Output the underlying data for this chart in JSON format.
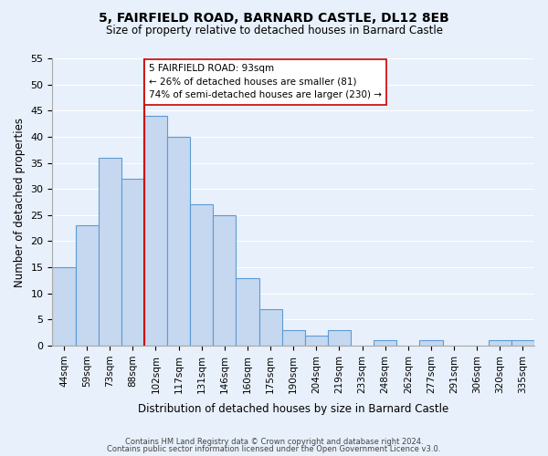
{
  "title": "5, FAIRFIELD ROAD, BARNARD CASTLE, DL12 8EB",
  "subtitle": "Size of property relative to detached houses in Barnard Castle",
  "xlabel": "Distribution of detached houses by size in Barnard Castle",
  "ylabel": "Number of detached properties",
  "bar_labels": [
    "44sqm",
    "59sqm",
    "73sqm",
    "88sqm",
    "102sqm",
    "117sqm",
    "131sqm",
    "146sqm",
    "160sqm",
    "175sqm",
    "190sqm",
    "204sqm",
    "219sqm",
    "233sqm",
    "248sqm",
    "262sqm",
    "277sqm",
    "291sqm",
    "306sqm",
    "320sqm",
    "335sqm"
  ],
  "bar_values": [
    15,
    23,
    36,
    32,
    44,
    40,
    27,
    25,
    13,
    7,
    3,
    2,
    3,
    0,
    1,
    0,
    1,
    0,
    0,
    1,
    1
  ],
  "bar_color": "#c5d8f0",
  "bar_edge_color": "#5b9bd5",
  "highlight_line_color": "#cc0000",
  "annotation_text": "5 FAIRFIELD ROAD: 93sqm\n← 26% of detached houses are smaller (81)\n74% of semi-detached houses are larger (230) →",
  "annotation_box_edge": "#cc0000",
  "ylim": [
    0,
    55
  ],
  "yticks": [
    0,
    5,
    10,
    15,
    20,
    25,
    30,
    35,
    40,
    45,
    50,
    55
  ],
  "footer_line1": "Contains HM Land Registry data © Crown copyright and database right 2024.",
  "footer_line2": "Contains public sector information licensed under the Open Government Licence v3.0.",
  "bg_color": "#e8f0fb",
  "plot_bg_color": "#e8f0fb"
}
